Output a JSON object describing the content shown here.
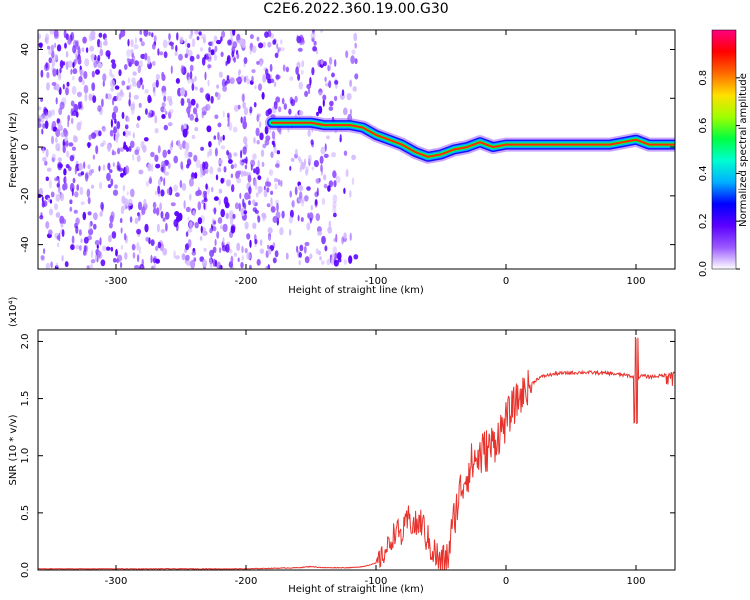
{
  "title": "C2E6.2022.360.19.00.G30",
  "chart_data": [
    {
      "type": "heatmap",
      "xlabel": "Height of straight line (km)",
      "ylabel": "Frequency (Hz)",
      "xlim": [
        -360,
        130
      ],
      "ylim": [
        -50,
        48
      ],
      "x_ticks": [
        -300,
        -200,
        -100,
        0,
        100
      ],
      "x_tick_labels": [
        "-300",
        "-200",
        "-100",
        "0",
        "100"
      ],
      "y_ticks": [
        -40,
        -20,
        0,
        20,
        40
      ],
      "y_tick_labels": [
        "-40",
        "-20",
        "0",
        "20",
        "40"
      ],
      "colorbar": {
        "label": "Normalized spectral amplitude",
        "range": [
          0.0,
          1.0
        ],
        "ticks": [
          0.0,
          0.2,
          0.4,
          0.6,
          0.8
        ],
        "tick_labels": [
          "0.0",
          "0.2",
          "0.4",
          "0.6",
          "0.8"
        ],
        "colormap": [
          "#ffffff",
          "#9a59ff",
          "#5a00ff",
          "#0000ff",
          "#00b0ff",
          "#00ffd0",
          "#00ff40",
          "#a0ff00",
          "#ffe000",
          "#ff6a00",
          "#ff0000",
          "#ff0080"
        ]
      },
      "signal_ridge": {
        "x": [
          -180,
          -170,
          -160,
          -150,
          -140,
          -130,
          -120,
          -110,
          -100,
          -90,
          -80,
          -70,
          -60,
          -50,
          -40,
          -30,
          -20,
          -10,
          0,
          20,
          40,
          60,
          80,
          90,
          100,
          110,
          120,
          130
        ],
        "frequency": [
          10,
          10,
          10,
          10,
          9,
          9,
          9,
          8,
          5,
          3,
          1,
          -2,
          -4,
          -3,
          -1,
          0,
          2,
          0,
          1,
          1,
          1,
          1,
          1,
          2,
          3,
          1,
          1,
          1
        ]
      },
      "noise_region_x": [
        -360,
        -115
      ]
    },
    {
      "type": "line",
      "xlabel": "Height of straight line (km)",
      "ylabel": "SNR (10 * v/v)",
      "scale_label": "(x10⁴)",
      "xlim": [
        -360,
        130
      ],
      "ylim": [
        0,
        2.1
      ],
      "x_ticks": [
        -300,
        -200,
        -100,
        0,
        100
      ],
      "x_tick_labels": [
        "-300",
        "-200",
        "-100",
        "0",
        "100"
      ],
      "y_ticks": [
        0.0,
        0.5,
        1.0,
        1.5,
        2.0
      ],
      "y_tick_labels": [
        "0.0",
        "0.5",
        "1.0",
        "1.5",
        "2.0"
      ],
      "line_color": "#e8322c",
      "series": [
        {
          "x": [
            -360,
            -300,
            -250,
            -200,
            -160,
            -150,
            -140,
            -120,
            -110,
            -100,
            -95,
            -90,
            -85,
            -80,
            -75,
            -70,
            -65,
            -60,
            -55,
            -50,
            -45,
            -40,
            -35,
            -30,
            -25,
            -20,
            -15,
            -10,
            -5,
            0,
            5,
            10,
            15,
            20,
            25,
            30,
            40,
            60,
            80,
            95,
            100,
            105,
            110,
            120,
            130
          ],
          "values": [
            0.01,
            0.01,
            0.01,
            0.01,
            0.02,
            0.03,
            0.02,
            0.02,
            0.03,
            0.06,
            0.12,
            0.22,
            0.35,
            0.3,
            0.45,
            0.38,
            0.42,
            0.25,
            0.15,
            0.05,
            0.1,
            0.45,
            0.7,
            0.85,
            0.95,
            1.0,
            1.05,
            1.1,
            1.2,
            1.3,
            1.42,
            1.5,
            1.58,
            1.63,
            1.68,
            1.7,
            1.72,
            1.73,
            1.72,
            1.7,
            1.68,
            1.7,
            1.69,
            1.7,
            1.72
          ]
        }
      ]
    }
  ]
}
